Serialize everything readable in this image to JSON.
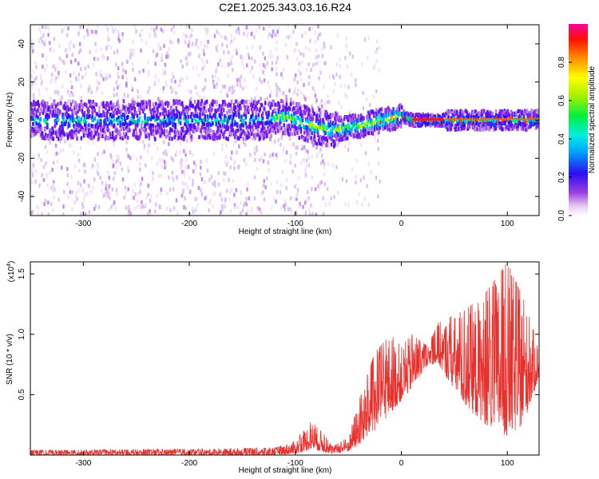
{
  "title": "C2E1.2025.343.03.16.R24",
  "chart_data": [
    {
      "type": "heatmap",
      "name": "spectrogram",
      "xlabel": "Height of straight line (km)",
      "ylabel": "Frequency (Hz)",
      "xlim": [
        -350,
        130
      ],
      "ylim": [
        -50,
        50
      ],
      "xticks": [
        -300,
        -200,
        -100,
        0,
        100
      ],
      "yticks": [
        -40,
        -20,
        0,
        20,
        40
      ],
      "colorbar": {
        "label": "Normalized spectral amplitude",
        "range": [
          0.0,
          1.0
        ],
        "ticks": [
          0.0,
          0.2,
          0.4,
          0.6,
          0.8
        ]
      },
      "ridge_center_hz": [
        {
          "x": -350,
          "y": 0
        },
        {
          "x": -130,
          "y": 0
        },
        {
          "x": -110,
          "y": 2
        },
        {
          "x": -85,
          "y": -3
        },
        {
          "x": -65,
          "y": -5
        },
        {
          "x": -40,
          "y": -3
        },
        {
          "x": -20,
          "y": 0
        },
        {
          "x": 0,
          "y": 2
        },
        {
          "x": 10,
          "y": 0
        },
        {
          "x": 40,
          "y": 0
        },
        {
          "x": 100,
          "y": 0
        },
        {
          "x": 130,
          "y": 0
        }
      ]
    },
    {
      "type": "line",
      "name": "snr",
      "xlabel": "Height of straight line (km)",
      "ylabel": "SNR (10 * v/v)",
      "y_multiplier_label": "(x10",
      "y_multiplier_exp": "4",
      "y_multiplier_close": ")",
      "xlim": [
        -350,
        130
      ],
      "ylim": [
        0,
        1.6
      ],
      "xticks": [
        -300,
        -200,
        -100,
        0,
        100
      ],
      "yticks": [
        "0.5",
        "1.0",
        "1.5"
      ],
      "series": [
        {
          "name": "SNR",
          "color": "#e8302c",
          "envelope": [
            {
              "x": -350,
              "lo": 0.0,
              "hi": 0.04
            },
            {
              "x": -200,
              "lo": 0.0,
              "hi": 0.05
            },
            {
              "x": -120,
              "lo": 0.0,
              "hi": 0.06
            },
            {
              "x": -100,
              "lo": 0.01,
              "hi": 0.12
            },
            {
              "x": -85,
              "lo": 0.05,
              "hi": 0.28
            },
            {
              "x": -75,
              "lo": 0.03,
              "hi": 0.2
            },
            {
              "x": -65,
              "lo": 0.01,
              "hi": 0.07
            },
            {
              "x": -50,
              "lo": 0.03,
              "hi": 0.15
            },
            {
              "x": -40,
              "lo": 0.08,
              "hi": 0.45
            },
            {
              "x": -25,
              "lo": 0.2,
              "hi": 0.85
            },
            {
              "x": -10,
              "lo": 0.35,
              "hi": 1.0
            },
            {
              "x": 0,
              "lo": 0.45,
              "hi": 0.9
            },
            {
              "x": 10,
              "lo": 0.55,
              "hi": 1.0
            },
            {
              "x": 25,
              "lo": 0.75,
              "hi": 0.9
            },
            {
              "x": 35,
              "lo": 0.75,
              "hi": 1.1
            },
            {
              "x": 60,
              "lo": 0.4,
              "hi": 1.2
            },
            {
              "x": 80,
              "lo": 0.25,
              "hi": 1.35
            },
            {
              "x": 100,
              "lo": 0.15,
              "hi": 1.6
            },
            {
              "x": 115,
              "lo": 0.25,
              "hi": 1.3
            },
            {
              "x": 130,
              "lo": 0.65,
              "hi": 0.9
            }
          ]
        }
      ]
    }
  ]
}
